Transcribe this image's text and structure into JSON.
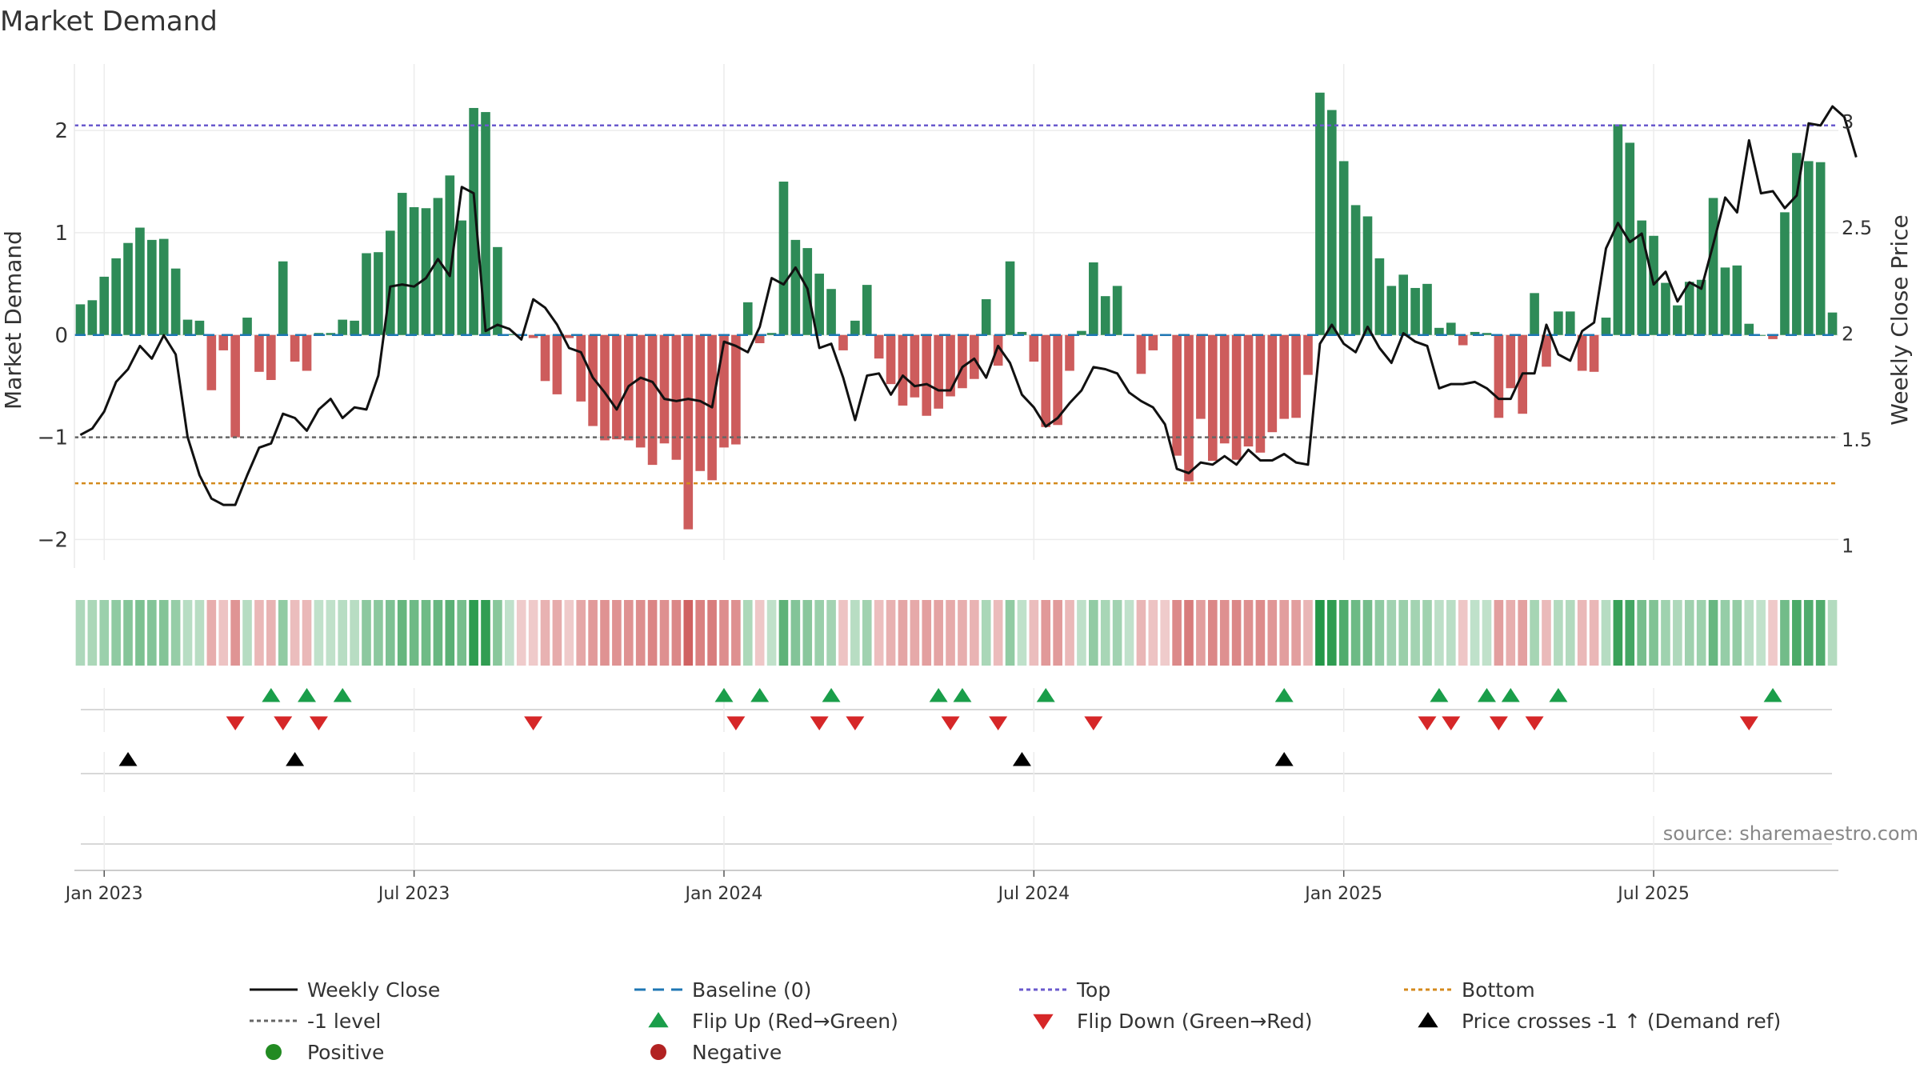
{
  "chart_data": {
    "type": "bar",
    "title": "Market Demand",
    "xlabel": "",
    "ylabel": "Market Demand",
    "y2label": "Weekly Close Price",
    "ylim": [
      -2.2,
      2.65
    ],
    "y2lim": [
      0.93,
      3.27
    ],
    "yticks": [
      -2,
      -1,
      0,
      1,
      2
    ],
    "y2ticks": [
      1,
      1.5,
      2,
      2.5,
      3
    ],
    "x_tick_labels": [
      "Jan 2023",
      "Jul 2023",
      "Jan 2024",
      "Jul 2024",
      "Jan 2025",
      "Jul 2025"
    ],
    "x_tick_weeks": [
      0,
      26,
      52,
      78,
      104,
      130
    ],
    "start_week_offset": -2,
    "reference_lines": {
      "top": 2.05,
      "bottom": -1.45,
      "minus_one": -1.0,
      "baseline": 0
    },
    "grid": true,
    "source": "source: sharemaestro.com",
    "series": [
      {
        "name": "Market Demand",
        "values": [
          0.3,
          0.34,
          0.57,
          0.75,
          0.9,
          1.05,
          0.93,
          0.94,
          0.65,
          0.15,
          0.14,
          -0.54,
          -0.15,
          -1.0,
          0.17,
          -0.36,
          -0.44,
          0.72,
          -0.26,
          -0.35,
          0.02,
          0.02,
          0.15,
          0.14,
          0.8,
          0.81,
          1.02,
          1.39,
          1.25,
          1.24,
          1.34,
          1.56,
          1.12,
          2.22,
          2.18,
          0.86,
          0.01,
          -0.01,
          -0.03,
          -0.45,
          -0.58,
          -0.03,
          -0.65,
          -0.89,
          -1.03,
          -1.02,
          -1.03,
          -1.1,
          -1.27,
          -1.06,
          -1.22,
          -1.9,
          -1.33,
          -1.42,
          -1.1,
          -1.07,
          0.32,
          -0.08,
          0.02,
          1.5,
          0.93,
          0.85,
          0.6,
          0.45,
          -0.15,
          0.14,
          0.49,
          -0.23,
          -0.48,
          -0.69,
          -0.61,
          -0.79,
          -0.72,
          -0.6,
          -0.52,
          -0.43,
          0.35,
          -0.3,
          0.72,
          0.03,
          -0.26,
          -0.9,
          -0.88,
          -0.35,
          0.04,
          0.71,
          0.38,
          0.48,
          0.01,
          -0.38,
          -0.15,
          -0.01,
          -1.18,
          -1.43,
          -0.82,
          -1.23,
          -1.06,
          -1.22,
          -1.09,
          -1.15,
          -0.95,
          -0.82,
          -0.81,
          -0.39,
          2.37,
          2.2,
          1.7,
          1.27,
          1.16,
          0.75,
          0.48,
          0.59,
          0.46,
          0.5,
          0.07,
          0.12,
          -0.1,
          0.03,
          0.02,
          -0.81,
          -0.52,
          -0.77,
          0.41,
          -0.31,
          0.23,
          0.23,
          -0.35,
          -0.36,
          0.17,
          2.06,
          1.88,
          1.12,
          0.97,
          0.51,
          0.29,
          0.52,
          0.54,
          1.34,
          0.66,
          0.68,
          0.11,
          0.0,
          -0.04,
          1.2,
          1.78,
          1.7,
          1.69,
          0.22
        ]
      },
      {
        "name": "Weekly Close",
        "values": [
          1.52,
          1.55,
          1.63,
          1.77,
          1.83,
          1.94,
          1.88,
          1.99,
          1.9,
          1.51,
          1.33,
          1.22,
          1.19,
          1.19,
          1.33,
          1.46,
          1.48,
          1.62,
          1.6,
          1.54,
          1.64,
          1.69,
          1.6,
          1.65,
          1.64,
          1.8,
          2.22,
          2.23,
          2.22,
          2.26,
          2.35,
          2.27,
          2.69,
          2.66,
          2.01,
          2.04,
          2.02,
          1.97,
          2.16,
          2.12,
          2.04,
          1.93,
          1.91,
          1.79,
          1.72,
          1.64,
          1.75,
          1.79,
          1.77,
          1.69,
          1.68,
          1.69,
          1.68,
          1.65,
          1.96,
          1.94,
          1.91,
          2.03,
          2.26,
          2.23,
          2.31,
          2.21,
          1.93,
          1.95,
          1.79,
          1.59,
          1.8,
          1.81,
          1.71,
          1.8,
          1.75,
          1.76,
          1.73,
          1.73,
          1.84,
          1.88,
          1.79,
          1.94,
          1.86,
          1.71,
          1.65,
          1.56,
          1.6,
          1.67,
          1.73,
          1.84,
          1.83,
          1.81,
          1.72,
          1.68,
          1.65,
          1.57,
          1.36,
          1.34,
          1.39,
          1.38,
          1.42,
          1.38,
          1.45,
          1.4,
          1.4,
          1.43,
          1.39,
          1.38,
          1.95,
          2.04,
          1.95,
          1.91,
          2.03,
          1.93,
          1.86,
          2.0,
          1.96,
          1.94,
          1.74,
          1.76,
          1.76,
          1.77,
          1.74,
          1.69,
          1.69,
          1.81,
          1.81,
          2.04,
          1.9,
          1.87,
          2.01,
          2.05,
          2.4,
          2.52,
          2.43,
          2.47,
          2.23,
          2.29,
          2.15,
          2.24,
          2.21,
          2.42,
          2.64,
          2.57,
          2.91,
          2.66,
          2.67,
          2.59,
          2.65,
          2.99,
          2.98,
          3.07,
          3.02,
          2.83
        ]
      }
    ],
    "flip_up_weeks": [
      14,
      17,
      20,
      52,
      55,
      61,
      70,
      72,
      79,
      99,
      112,
      116,
      118,
      122,
      140
    ],
    "flip_down_weeks": [
      11,
      15,
      18,
      36,
      53,
      60,
      63,
      71,
      75,
      83,
      111,
      113,
      117,
      120,
      138
    ],
    "price_cross_weeks": [
      2,
      16,
      77,
      99
    ],
    "legend": [
      "Weekly Close",
      "Baseline (0)",
      "Top",
      "Bottom",
      "-1 level",
      "Flip Up (Red→Green)",
      "Flip Down (Green→Red)",
      "Price crosses -1 ↑ (Demand ref)",
      "Positive",
      "Negative"
    ],
    "colors": {
      "positive_bar": "#2e8b57",
      "negative_bar": "#cd5c5c",
      "close_line": "#111111",
      "baseline": "#1f77b4",
      "top": "#6a5acd",
      "bottom": "#d48a1c",
      "minus_one": "#666666",
      "flip_up": "#1a9e4a",
      "flip_down": "#d62728",
      "cross": "#000000",
      "positive_dot": "#228b22",
      "negative_dot": "#b22222"
    }
  }
}
